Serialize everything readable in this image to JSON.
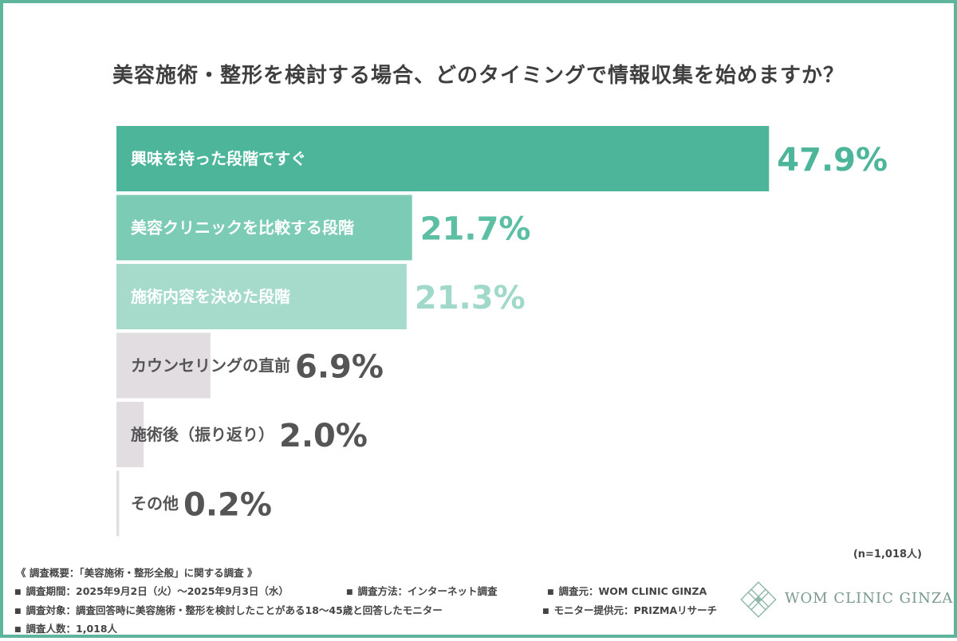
{
  "chart_data": {
    "type": "bar",
    "orientation": "horizontal",
    "title": "美容施術・整形を検討する場合、どのタイミングで情報収集を始めますか？",
    "categories": [
      "興味を持った段階ですぐ",
      "美容クリニックを比較する段階",
      "施術内容を決めた段階",
      "カウンセリングの直前",
      "施術後（振り返り）",
      "その他"
    ],
    "values": [
      47.9,
      21.7,
      21.3,
      6.9,
      2.0,
      0.2
    ],
    "value_labels": [
      "47.9%",
      "21.7%",
      "21.3%",
      "6.9%",
      "2.0%",
      "0.2%"
    ],
    "bar_colors": [
      "#4db69a",
      "#7ccbb4",
      "#a6dbcc",
      "#e2dde0",
      "#e2dde0",
      "#e2dde0"
    ],
    "label_colors": [
      "#ffffff",
      "#ffffff",
      "#ffffff",
      "#555555",
      "#555555",
      "#555555"
    ],
    "value_colors": [
      "#4db69a",
      "#5cbfa4",
      "#a0d9c9",
      "#555555",
      "#555555",
      "#555555"
    ],
    "xlim": [
      0,
      48
    ],
    "sample": "(n=1,018人)"
  },
  "footer": {
    "overview": "《 調査概要：「美容施術・整形全般」に関する調査 》",
    "period": "調査期間：2025年9月2日（火）〜2025年9月3日（水）",
    "method": "調査方法：インターネット調査",
    "source": "調査元：WOM CLINIC GINZA",
    "target": "調査対象：調査回答時に美容施術・整形を検討したことがある18〜45歳と回答したモニター",
    "provider": "モニター提供元：PRIZMAリサーチ",
    "count": "調査人数：1,018人"
  },
  "logo": {
    "text": "WOM CLINIC GINZA",
    "accent": "#8fb8aa"
  },
  "frame_color": "#5fb49c"
}
